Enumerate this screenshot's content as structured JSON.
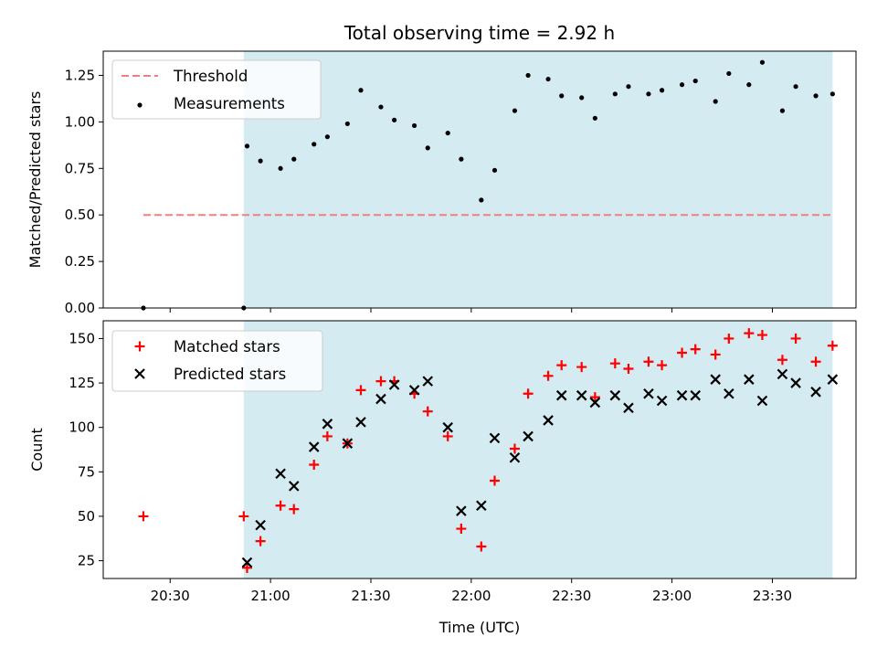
{
  "chart_data": [
    {
      "type": "scatter",
      "title": "Total observing time = 2.92 h",
      "xlabel": "",
      "ylabel": "Matched/Predicted stars",
      "ylim": [
        0,
        1.38
      ],
      "yticks": [
        0.0,
        0.25,
        0.5,
        0.75,
        1.0,
        1.25
      ],
      "ytick_labels": [
        "0.00",
        "0.25",
        "0.50",
        "0.75",
        "1.00",
        "1.25"
      ],
      "legend_position": "top-left",
      "observing_window": [
        "20:52",
        "23:48"
      ],
      "threshold": {
        "name": "Threshold",
        "y": 0.5,
        "x_range": [
          "20:22",
          "23:48"
        ],
        "color": "#f07f7f"
      },
      "series": [
        {
          "name": "Measurements",
          "color": "#000000",
          "x": [
            "20:22",
            "20:52",
            "20:53",
            "20:57",
            "21:03",
            "21:07",
            "21:13",
            "21:17",
            "21:23",
            "21:27",
            "21:33",
            "21:37",
            "21:43",
            "21:47",
            "21:53",
            "21:57",
            "22:03",
            "22:07",
            "22:13",
            "22:17",
            "22:23",
            "22:27",
            "22:33",
            "22:37",
            "22:43",
            "22:47",
            "22:53",
            "22:57",
            "23:03",
            "23:07",
            "23:13",
            "23:17",
            "23:23",
            "23:27",
            "23:33",
            "23:37",
            "23:43",
            "23:48"
          ],
          "values": [
            0.0,
            0.0,
            0.87,
            0.79,
            0.75,
            0.8,
            0.88,
            0.92,
            0.99,
            1.17,
            1.08,
            1.01,
            0.98,
            0.86,
            0.94,
            0.8,
            0.58,
            0.74,
            1.06,
            1.25,
            1.23,
            1.14,
            1.13,
            1.02,
            1.15,
            1.19,
            1.15,
            1.17,
            1.2,
            1.22,
            1.11,
            1.26,
            1.2,
            1.32,
            1.06,
            1.19,
            1.14,
            1.15
          ]
        }
      ]
    },
    {
      "type": "scatter",
      "title": "",
      "xlabel": "Time (UTC)",
      "ylabel": "Count",
      "ylim": [
        15,
        160
      ],
      "yticks": [
        25,
        50,
        75,
        100,
        125,
        150
      ],
      "ytick_labels": [
        "25",
        "50",
        "75",
        "100",
        "125",
        "150"
      ],
      "xticks": [
        "20:30",
        "21:00",
        "21:30",
        "22:00",
        "22:30",
        "23:00",
        "23:30"
      ],
      "xtick_labels": [
        "20:30",
        "21:00",
        "21:30",
        "22:00",
        "22:30",
        "23:00",
        "23:30"
      ],
      "xlim": [
        "20:10",
        "23:55"
      ],
      "legend_position": "top-left",
      "observing_window": [
        "20:52",
        "23:48"
      ],
      "series": [
        {
          "name": "Matched stars",
          "marker": "plus",
          "color": "#ff0000",
          "x": [
            "20:22",
            "20:52",
            "20:53",
            "20:57",
            "21:03",
            "21:07",
            "21:13",
            "21:17",
            "21:23",
            "21:27",
            "21:33",
            "21:37",
            "21:43",
            "21:47",
            "21:53",
            "21:57",
            "22:03",
            "22:07",
            "22:13",
            "22:17",
            "22:23",
            "22:27",
            "22:33",
            "22:37",
            "22:43",
            "22:47",
            "22:53",
            "22:57",
            "23:03",
            "23:07",
            "23:13",
            "23:17",
            "23:23",
            "23:27",
            "23:33",
            "23:37",
            "23:43",
            "23:48"
          ],
          "values": [
            50,
            50,
            21,
            36,
            56,
            54,
            79,
            95,
            91,
            121,
            126,
            126,
            119,
            109,
            95,
            43,
            33,
            70,
            88,
            119,
            129,
            135,
            134,
            117,
            136,
            133,
            137,
            135,
            142,
            144,
            141,
            150,
            153,
            152,
            138,
            150,
            137,
            146
          ]
        },
        {
          "name": "Predicted stars",
          "marker": "x",
          "color": "#000000",
          "x": [
            "20:53",
            "20:57",
            "21:03",
            "21:07",
            "21:13",
            "21:17",
            "21:23",
            "21:27",
            "21:33",
            "21:37",
            "21:43",
            "21:47",
            "21:53",
            "21:57",
            "22:03",
            "22:07",
            "22:13",
            "22:17",
            "22:23",
            "22:27",
            "22:33",
            "22:37",
            "22:43",
            "22:47",
            "22:53",
            "22:57",
            "23:03",
            "23:07",
            "23:13",
            "23:17",
            "23:23",
            "23:27",
            "23:33",
            "23:37",
            "23:43",
            "23:48"
          ],
          "values": [
            24,
            45,
            74,
            67,
            89,
            102,
            91,
            103,
            116,
            124,
            121,
            126,
            100,
            53,
            56,
            94,
            83,
            95,
            104,
            118,
            118,
            114,
            118,
            111,
            119,
            115,
            118,
            118,
            127,
            119,
            127,
            115,
            130,
            125,
            120,
            127
          ]
        }
      ]
    }
  ]
}
